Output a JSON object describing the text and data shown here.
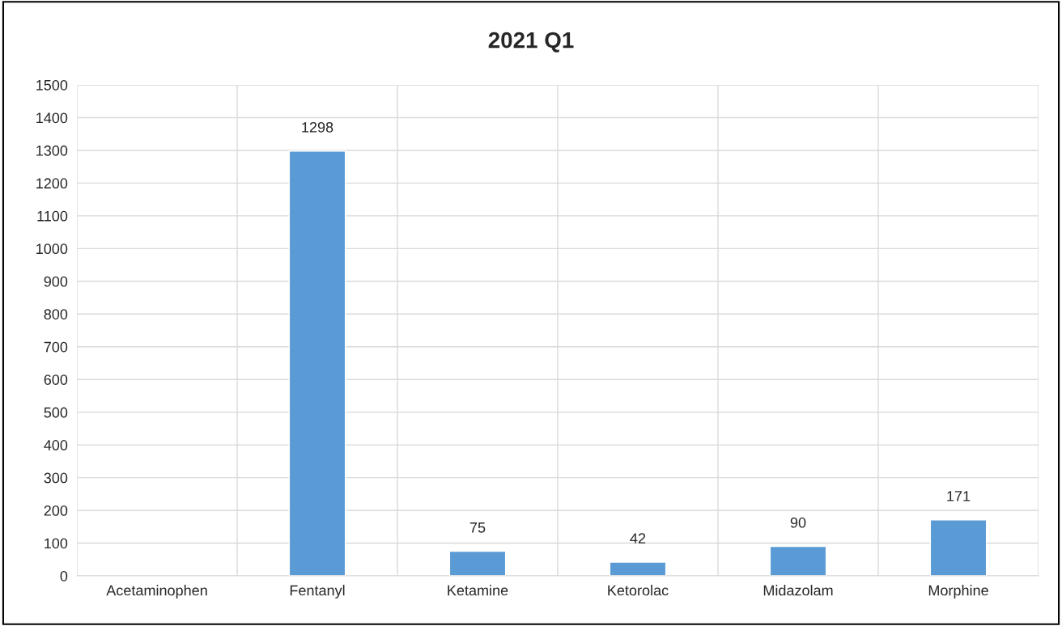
{
  "chart_data": {
    "type": "bar",
    "title": "2021 Q1",
    "categories": [
      "Acetaminophen",
      "Fentanyl",
      "Ketamine",
      "Ketorolac",
      "Midazolam",
      "Morphine"
    ],
    "values": [
      null,
      1298,
      75,
      42,
      90,
      171
    ],
    "value_labels": [
      null,
      "1298",
      "75",
      "42",
      "90",
      "171"
    ],
    "color": "#5b9bd5",
    "ylim": [
      0,
      1500
    ],
    "yticks": [
      0,
      100,
      200,
      300,
      400,
      500,
      600,
      700,
      800,
      900,
      1000,
      1100,
      1200,
      1300,
      1400,
      1500
    ],
    "grid": true,
    "legend": false
  }
}
